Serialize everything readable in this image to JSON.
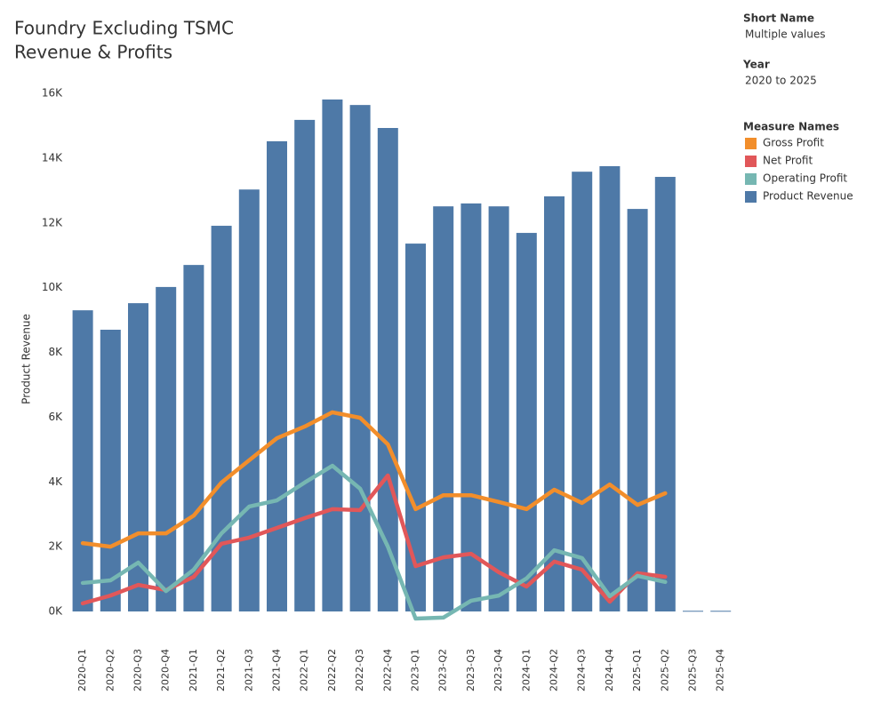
{
  "chart_data": {
    "type": "bar-line",
    "title": [
      "Foundry  Excluding TSMC",
      "Revenue & Profits"
    ],
    "y_label": "Product Revenue",
    "filters": [
      {
        "title": "Short Name",
        "value": "Multiple values"
      },
      {
        "title": "Year",
        "value": "2020 to 2025"
      }
    ],
    "legend_title": "Measure Names",
    "categories": [
      "2020-Q1",
      "2020-Q2",
      "2020-Q3",
      "2020-Q4",
      "2021-Q1",
      "2021-Q2",
      "2021-Q3",
      "2021-Q4",
      "2022-Q1",
      "2022-Q2",
      "2022-Q3",
      "2022-Q4",
      "2023-Q1",
      "2023-Q2",
      "2023-Q3",
      "2023-Q4",
      "2024-Q1",
      "2024-Q2",
      "2024-Q3",
      "2024-Q4",
      "2025-Q1",
      "2025-Q2",
      "2025-Q3",
      "2025-Q4"
    ],
    "series": [
      {
        "name": "Gross Profit",
        "mark": "line",
        "color": "#f28e2b",
        "values": [
          2110,
          2000,
          2410,
          2410,
          2960,
          3980,
          4670,
          5350,
          5710,
          6150,
          5980,
          5160,
          3160,
          3590,
          3590,
          3380,
          3160,
          3760,
          3350,
          3920,
          3290,
          3650,
          null,
          null
        ]
      },
      {
        "name": "Net Profit",
        "mark": "line",
        "color": "#e15759",
        "values": [
          250,
          490,
          820,
          660,
          1070,
          2090,
          2280,
          2580,
          2880,
          3160,
          3130,
          4200,
          1400,
          1670,
          1780,
          1210,
          770,
          1540,
          1290,
          300,
          1180,
          1070,
          null,
          null
        ]
      },
      {
        "name": "Operating Profit",
        "mark": "line",
        "color": "#76b7b2",
        "values": [
          880,
          960,
          1510,
          630,
          1290,
          2410,
          3240,
          3430,
          3980,
          4500,
          3790,
          2000,
          -220,
          -190,
          330,
          490,
          1020,
          1890,
          1650,
          470,
          1100,
          910,
          null,
          null
        ]
      },
      {
        "name": "Product Revenue",
        "mark": "bar",
        "color": "#4e79a7",
        "values": [
          9300,
          8700,
          9520,
          10020,
          10700,
          11910,
          13030,
          14520,
          15180,
          15810,
          15640,
          14930,
          11360,
          12510,
          12600,
          12510,
          11690,
          12820,
          13580,
          13750,
          12430,
          13420,
          20,
          20
        ]
      }
    ],
    "ylim": [
      -700,
      16500
    ],
    "yticks": [
      {
        "value": 0,
        "label": "0K"
      },
      {
        "value": 2000,
        "label": "2K"
      },
      {
        "value": 4000,
        "label": "4K"
      },
      {
        "value": 6000,
        "label": "6K"
      },
      {
        "value": 8000,
        "label": "8K"
      },
      {
        "value": 10000,
        "label": "10K"
      },
      {
        "value": 12000,
        "label": "12K"
      },
      {
        "value": 14000,
        "label": "14K"
      },
      {
        "value": 16000,
        "label": "16K"
      }
    ],
    "grid": false
  }
}
